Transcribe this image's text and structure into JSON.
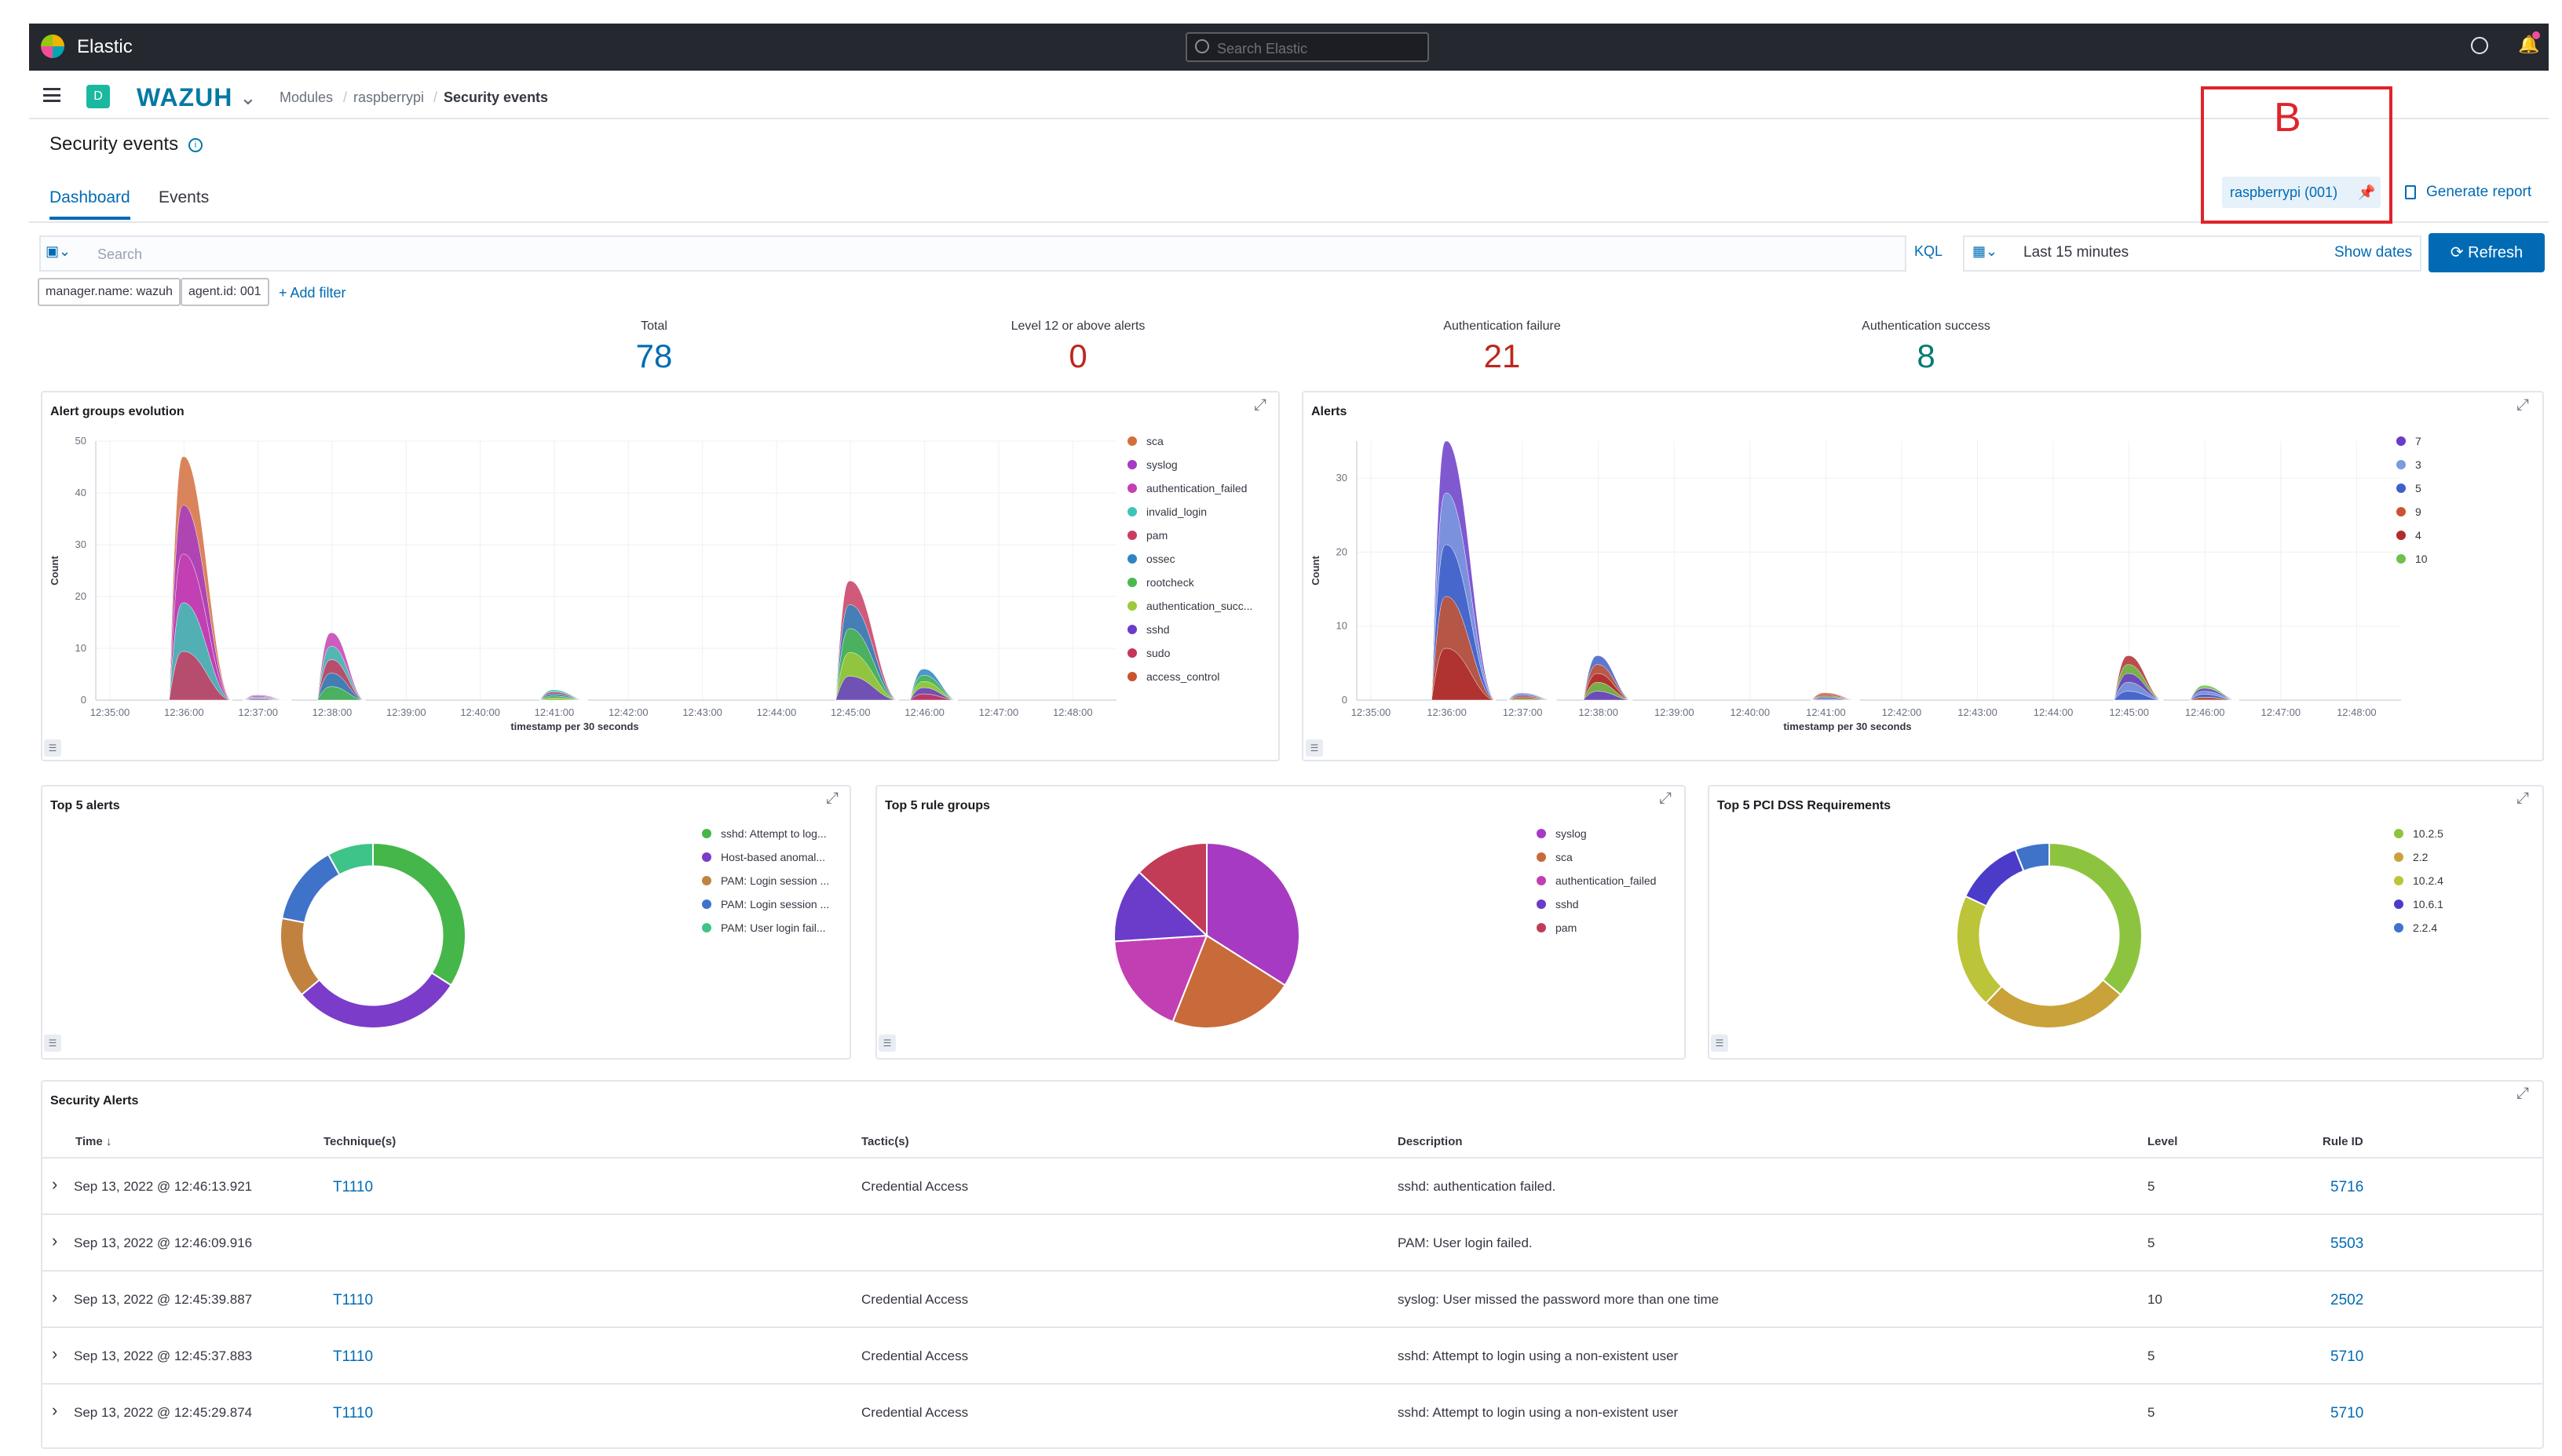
{
  "topbar": {
    "brand": "Elastic",
    "search_placeholder": "Search Elastic"
  },
  "header": {
    "space": "D",
    "logo": "WAZUH",
    "breadcrumbs": [
      "Modules",
      "raspberrypi",
      "Security events"
    ]
  },
  "page": {
    "title": "Security events",
    "tabs": [
      "Dashboard",
      "Events"
    ]
  },
  "annotation": {
    "label": "B"
  },
  "agent": {
    "pill": "raspberrypi (001)",
    "generate_report": "Generate report"
  },
  "query": {
    "placeholder": "Search",
    "language": "KQL",
    "date_range": "Last 15 minutes",
    "show_dates": "Show dates",
    "refresh": "Refresh"
  },
  "filters": {
    "items": [
      "manager.name: wazuh",
      "agent.id: 001"
    ],
    "add": "+ Add filter"
  },
  "metrics": [
    {
      "label": "Total",
      "value": "78",
      "color": "#006bb4"
    },
    {
      "label": "Level 12 or above alerts",
      "value": "0",
      "color": "#bd271e"
    },
    {
      "label": "Authentication failure",
      "value": "21",
      "color": "#bd271e"
    },
    {
      "label": "Authentication success",
      "value": "8",
      "color": "#017d73"
    }
  ],
  "charts": {
    "alert_groups": {
      "title": "Alert groups evolution",
      "ylabel": "Count",
      "xlabel": "timestamp per 30 seconds"
    },
    "alerts": {
      "title": "Alerts",
      "ylabel": "Count",
      "xlabel": "timestamp per 30 seconds"
    },
    "top5_alerts": {
      "title": "Top 5 alerts"
    },
    "top5_rules": {
      "title": "Top 5 rule groups"
    },
    "top5_pci": {
      "title": "Top 5 PCI DSS Requirements"
    }
  },
  "chart_data": [
    {
      "type": "area",
      "title": "Alert groups evolution",
      "xlabel": "timestamp per 30 seconds",
      "ylabel": "Count",
      "ylim": [
        0,
        50
      ],
      "x": [
        "12:35:00",
        "12:36:00",
        "12:37:00",
        "12:38:00",
        "12:39:00",
        "12:40:00",
        "12:41:00",
        "12:42:00",
        "12:43:00",
        "12:44:00",
        "12:45:00",
        "12:46:00",
        "12:47:00",
        "12:48:00"
      ],
      "yticks": [
        0,
        10,
        20,
        30,
        40,
        50
      ],
      "legend": [
        {
          "name": "sca",
          "color": "#d36f3f"
        },
        {
          "name": "syslog",
          "color": "#a73ac2"
        },
        {
          "name": "authentication_failed",
          "color": "#c63fb3"
        },
        {
          "name": "invalid_login",
          "color": "#3ec4b4"
        },
        {
          "name": "pam",
          "color": "#c93c62"
        },
        {
          "name": "ossec",
          "color": "#2e86c1"
        },
        {
          "name": "rootcheck",
          "color": "#4cb850"
        },
        {
          "name": "authentication_succ...",
          "color": "#9dc93a"
        },
        {
          "name": "sshd",
          "color": "#6a3cc9"
        },
        {
          "name": "sudo",
          "color": "#c7355f"
        },
        {
          "name": "access_control",
          "color": "#c9542f"
        }
      ],
      "total_series": [
        {
          "t": "12:36:00",
          "v": 47
        },
        {
          "t": "12:37:00",
          "v": 1
        },
        {
          "t": "12:38:00",
          "v": 13
        },
        {
          "t": "12:41:00",
          "v": 2
        },
        {
          "t": "12:45:00",
          "v": 23
        },
        {
          "t": "12:46:00",
          "v": 6
        }
      ]
    },
    {
      "type": "area",
      "title": "Alerts",
      "xlabel": "timestamp per 30 seconds",
      "ylabel": "Count",
      "ylim": [
        0,
        35
      ],
      "x": [
        "12:35:00",
        "12:36:00",
        "12:37:00",
        "12:38:00",
        "12:39:00",
        "12:40:00",
        "12:41:00",
        "12:42:00",
        "12:43:00",
        "12:44:00",
        "12:45:00",
        "12:46:00",
        "12:47:00",
        "12:48:00"
      ],
      "yticks": [
        0,
        10,
        20,
        30
      ],
      "legend": [
        {
          "name": "7",
          "color": "#6a3cc9"
        },
        {
          "name": "3",
          "color": "#7a9be0"
        },
        {
          "name": "5",
          "color": "#3f5fc9"
        },
        {
          "name": "9",
          "color": "#c9542f"
        },
        {
          "name": "4",
          "color": "#b02d2d"
        },
        {
          "name": "10",
          "color": "#6cc24a"
        }
      ],
      "total_series": [
        {
          "t": "12:36:00",
          "v": 35
        },
        {
          "t": "12:37:00",
          "v": 1
        },
        {
          "t": "12:38:00",
          "v": 6
        },
        {
          "t": "12:41:00",
          "v": 1
        },
        {
          "t": "12:45:00",
          "v": 6
        },
        {
          "t": "12:46:00",
          "v": 2
        }
      ]
    },
    {
      "type": "pie",
      "title": "Top 5 alerts",
      "donut": true,
      "slices": [
        {
          "name": "sshd: Attempt to log...",
          "value": 34,
          "color": "#45b649"
        },
        {
          "name": "Host-based anomal...",
          "value": 30,
          "color": "#7a3cc9"
        },
        {
          "name": "PAM: Login session ...",
          "value": 14,
          "color": "#c2823f"
        },
        {
          "name": "PAM: Login session ...",
          "value": 14,
          "color": "#3f73c9"
        },
        {
          "name": "PAM: User login fail...",
          "value": 8,
          "color": "#3ec488"
        }
      ]
    },
    {
      "type": "pie",
      "title": "Top 5 rule groups",
      "donut": false,
      "slices": [
        {
          "name": "syslog",
          "value": 34,
          "color": "#a73ac2"
        },
        {
          "name": "sca",
          "value": 22,
          "color": "#c96a3a"
        },
        {
          "name": "authentication_failed",
          "value": 18,
          "color": "#c23fb3"
        },
        {
          "name": "sshd",
          "value": 13,
          "color": "#6a3cc9"
        },
        {
          "name": "pam",
          "value": 13,
          "color": "#c23c58"
        }
      ]
    },
    {
      "type": "pie",
      "title": "Top 5 PCI DSS Requirements",
      "donut": true,
      "slices": [
        {
          "name": "10.2.5",
          "value": 36,
          "color": "#8dc43f"
        },
        {
          "name": "2.2",
          "value": 26,
          "color": "#c9a23a"
        },
        {
          "name": "10.2.4",
          "value": 20,
          "color": "#bcc43a"
        },
        {
          "name": "10.6.1",
          "value": 12,
          "color": "#4a3cc9"
        },
        {
          "name": "2.2.4",
          "value": 6,
          "color": "#3f73c9"
        }
      ]
    }
  ],
  "table": {
    "title": "Security Alerts",
    "columns": [
      "Time",
      "Technique(s)",
      "Tactic(s)",
      "Description",
      "Level",
      "Rule ID"
    ],
    "rows": [
      {
        "time": "Sep 13, 2022 @ 12:46:13.921",
        "technique": "T1110",
        "tactic": "Credential Access",
        "description": "sshd: authentication failed.",
        "level": "5",
        "rule": "5716"
      },
      {
        "time": "Sep 13, 2022 @ 12:46:09.916",
        "technique": "",
        "tactic": "",
        "description": "PAM: User login failed.",
        "level": "5",
        "rule": "5503"
      },
      {
        "time": "Sep 13, 2022 @ 12:45:39.887",
        "technique": "T1110",
        "tactic": "Credential Access",
        "description": "syslog: User missed the password more than one time",
        "level": "10",
        "rule": "2502"
      },
      {
        "time": "Sep 13, 2022 @ 12:45:37.883",
        "technique": "T1110",
        "tactic": "Credential Access",
        "description": "sshd: Attempt to login using a non-existent user",
        "level": "5",
        "rule": "5710"
      },
      {
        "time": "Sep 13, 2022 @ 12:45:29.874",
        "technique": "T1110",
        "tactic": "Credential Access",
        "description": "sshd: Attempt to login using a non-existent user",
        "level": "5",
        "rule": "5710"
      }
    ]
  }
}
